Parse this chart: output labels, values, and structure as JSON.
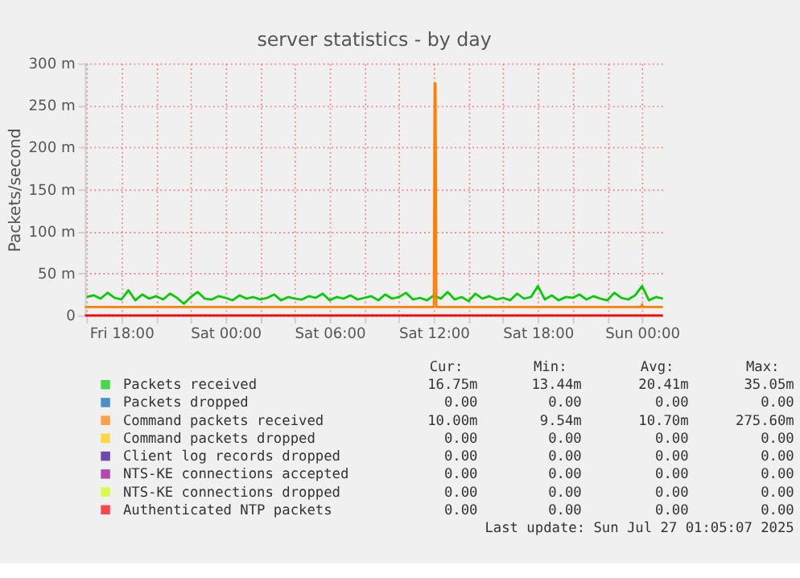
{
  "chart_data": {
    "type": "line",
    "title": "server statistics - by day",
    "ylabel": "Packets/second",
    "xlim": [
      "2025-07-25T15:54",
      "2025-07-27T01:15"
    ],
    "ylim": [
      0,
      300
    ],
    "xticks": [
      {
        "value": "2025-07-25T16:00",
        "label": null
      },
      {
        "value": "2025-07-25T18:00",
        "label": "Fri 18:00"
      },
      {
        "value": "2025-07-25T20:00",
        "label": null
      },
      {
        "value": "2025-07-25T22:00",
        "label": null
      },
      {
        "value": "2025-07-26T00:00",
        "label": "Sat 00:00"
      },
      {
        "value": "2025-07-26T02:00",
        "label": null
      },
      {
        "value": "2025-07-26T04:00",
        "label": null
      },
      {
        "value": "2025-07-26T06:00",
        "label": "Sat 06:00"
      },
      {
        "value": "2025-07-26T08:00",
        "label": null
      },
      {
        "value": "2025-07-26T10:00",
        "label": null
      },
      {
        "value": "2025-07-26T12:00",
        "label": "Sat 12:00"
      },
      {
        "value": "2025-07-26T14:00",
        "label": null
      },
      {
        "value": "2025-07-26T16:00",
        "label": null
      },
      {
        "value": "2025-07-26T18:00",
        "label": "Sat 18:00"
      },
      {
        "value": "2025-07-26T20:00",
        "label": null
      },
      {
        "value": "2025-07-26T22:00",
        "label": null
      },
      {
        "value": "2025-07-27T00:00",
        "label": "Sun 00:00"
      }
    ],
    "yticks": [
      0,
      {
        "value": 50,
        "label": "50 m"
      },
      {
        "value": 100,
        "label": "100 m"
      },
      {
        "value": 150,
        "label": "150 m"
      },
      {
        "value": 200,
        "label": "200 m"
      },
      {
        "value": 250,
        "label": "250 m"
      },
      {
        "value": 300,
        "label": "300 m"
      }
    ],
    "grid": true,
    "legend": "bottom",
    "line_style": "solid",
    "marker": "none",
    "series": [
      {
        "name": "Packets received",
        "color": "#00cc00",
        "x": [
          "2025-07-25T16:00",
          "2025-07-25T16:24",
          "2025-07-25T16:48",
          "2025-07-25T17:12",
          "2025-07-25T17:36",
          "2025-07-25T18:00",
          "2025-07-25T18:24",
          "2025-07-25T18:48",
          "2025-07-25T19:12",
          "2025-07-25T19:36",
          "2025-07-25T20:00",
          "2025-07-25T20:24",
          "2025-07-25T20:48",
          "2025-07-25T21:12",
          "2025-07-25T21:36",
          "2025-07-25T22:00",
          "2025-07-25T22:24",
          "2025-07-25T22:48",
          "2025-07-25T23:12",
          "2025-07-25T23:36",
          "2025-07-26T00:00",
          "2025-07-26T00:24",
          "2025-07-26T00:48",
          "2025-07-26T01:12",
          "2025-07-26T01:36",
          "2025-07-26T02:00",
          "2025-07-26T02:24",
          "2025-07-26T02:48",
          "2025-07-26T03:12",
          "2025-07-26T03:36",
          "2025-07-26T04:00",
          "2025-07-26T04:24",
          "2025-07-26T04:48",
          "2025-07-26T05:12",
          "2025-07-26T05:36",
          "2025-07-26T06:00",
          "2025-07-26T06:24",
          "2025-07-26T06:48",
          "2025-07-26T07:12",
          "2025-07-26T07:36",
          "2025-07-26T08:00",
          "2025-07-26T08:24",
          "2025-07-26T08:48",
          "2025-07-26T09:12",
          "2025-07-26T09:36",
          "2025-07-26T10:00",
          "2025-07-26T10:24",
          "2025-07-26T10:48",
          "2025-07-26T11:12",
          "2025-07-26T11:36",
          "2025-07-26T12:00",
          "2025-07-26T12:24",
          "2025-07-26T12:48",
          "2025-07-26T13:12",
          "2025-07-26T13:36",
          "2025-07-26T14:00",
          "2025-07-26T14:24",
          "2025-07-26T14:48",
          "2025-07-26T15:12",
          "2025-07-26T15:36",
          "2025-07-26T16:00",
          "2025-07-26T16:24",
          "2025-07-26T16:48",
          "2025-07-26T17:12",
          "2025-07-26T17:36",
          "2025-07-26T18:00",
          "2025-07-26T18:24",
          "2025-07-26T18:48",
          "2025-07-26T19:12",
          "2025-07-26T19:36",
          "2025-07-26T20:00",
          "2025-07-26T20:24",
          "2025-07-26T20:48",
          "2025-07-26T21:12",
          "2025-07-26T21:36",
          "2025-07-26T22:00",
          "2025-07-26T22:24",
          "2025-07-26T22:48",
          "2025-07-26T23:12",
          "2025-07-26T23:36",
          "2025-07-27T00:00",
          "2025-07-27T00:24",
          "2025-07-27T00:48",
          "2025-07-27T01:12"
        ],
        "values": [
          22,
          24,
          20,
          27,
          21,
          19,
          30,
          18,
          25,
          20,
          23,
          19,
          26,
          21,
          14,
          22,
          28,
          20,
          19,
          23,
          21,
          18,
          24,
          20,
          22,
          19,
          21,
          25,
          18,
          22,
          20,
          19,
          23,
          21,
          26,
          18,
          22,
          20,
          24,
          19,
          21,
          23,
          18,
          25,
          20,
          22,
          27,
          19,
          21,
          18,
          24,
          20,
          28,
          19,
          22,
          17,
          26,
          20,
          23,
          19,
          21,
          18,
          26,
          20,
          22,
          35,
          19,
          24,
          18,
          22,
          21,
          25,
          19,
          23,
          20,
          18,
          27,
          21,
          19,
          24,
          35,
          18,
          22,
          20
        ]
      },
      {
        "name": "Packets dropped",
        "color": "#0066b3"
      },
      {
        "name": "Command packets received",
        "color": "#ff8000",
        "x": [
          "2025-07-25T15:54",
          "2025-07-26T12:00",
          "2025-07-26T12:03",
          "2025-07-26T12:06",
          "2025-07-26T12:09",
          "2025-07-26T23:57",
          "2025-07-27T00:00",
          "2025-07-27T00:03",
          "2025-07-27T01:12"
        ],
        "values": [
          10,
          10,
          276,
          276,
          10,
          10,
          13,
          10,
          10
        ]
      },
      {
        "name": "Command packets dropped",
        "color": "#ffcc00"
      },
      {
        "name": "Client log records dropped",
        "color": "#330099"
      },
      {
        "name": "NTS-KE connections accepted",
        "color": "#990099"
      },
      {
        "name": "NTS-KE connections dropped",
        "color": "#ccff00"
      },
      {
        "name": "Authenticated NTP packets",
        "color": "#ff0000",
        "x": [
          "2025-07-25T15:54",
          "2025-07-27T01:12"
        ],
        "values": [
          0,
          0
        ]
      }
    ],
    "annotations": [
      "Cur:",
      "Min:",
      "Avg:",
      "Max:",
      "16.75m",
      "13.44m",
      "20.41m",
      "35.05m",
      "0.00",
      "0.00",
      "0.00",
      "0.00",
      "10.00m",
      "9.54m",
      "10.70m",
      "275.60m",
      "0.00",
      "0.00",
      "0.00",
      "0.00",
      "0.00",
      "0.00",
      "0.00",
      "0.00",
      "0.00",
      "0.00",
      "0.00",
      "0.00",
      "0.00",
      "0.00",
      "0.00",
      "0.00",
      "0.00",
      "0.00",
      "0.00",
      "0.00",
      "Last update: Sun Jul 27 01:05:07 2025"
    ]
  }
}
